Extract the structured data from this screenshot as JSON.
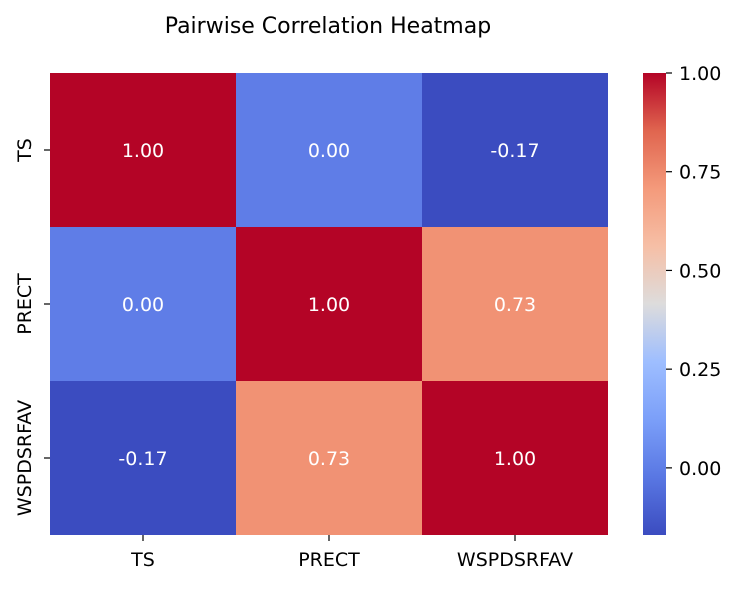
{
  "chart_data": {
    "type": "heatmap",
    "title": "Pairwise Correlation Heatmap",
    "xlabel": "",
    "ylabel": "",
    "x_categories": [
      "TS",
      "PRECT",
      "WSPDSRFAV"
    ],
    "y_categories": [
      "TS",
      "PRECT",
      "WSPDSRFAV"
    ],
    "values": [
      [
        1.0,
        0.0,
        -0.17
      ],
      [
        0.0,
        1.0,
        0.73
      ],
      [
        -0.17,
        0.73,
        1.0
      ]
    ],
    "value_labels": [
      [
        "1.00",
        "0.00",
        "-0.17"
      ],
      [
        "0.00",
        "1.00",
        "0.73"
      ],
      [
        "-0.17",
        "0.73",
        "1.00"
      ]
    ],
    "colormap": "coolwarm",
    "colorbar": {
      "range": [
        -0.17,
        1.0
      ],
      "ticks": [
        0.0,
        0.25,
        0.5,
        0.75,
        1.0
      ],
      "tick_labels": [
        "0.00",
        "0.25",
        "0.50",
        "0.75",
        "1.00"
      ]
    },
    "grid": false
  }
}
